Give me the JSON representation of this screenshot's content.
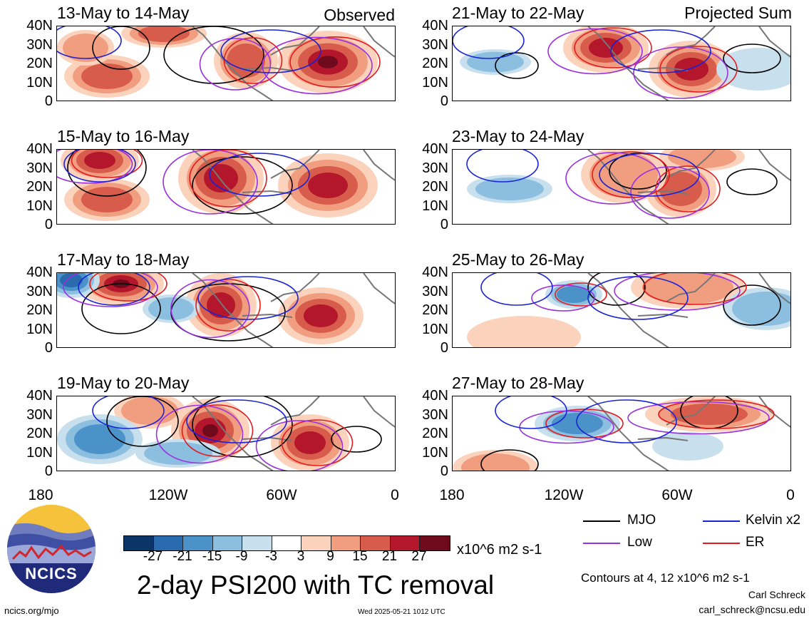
{
  "panels": [
    {
      "title": "13-May to 14-May",
      "label": "Observed"
    },
    {
      "title": "21-May to 22-May",
      "label": "Projected Sum"
    },
    {
      "title": "15-May to 16-May",
      "label": ""
    },
    {
      "title": "23-May to 24-May",
      "label": ""
    },
    {
      "title": "17-May to 18-May",
      "label": ""
    },
    {
      "title": "25-May to 26-May",
      "label": ""
    },
    {
      "title": "19-May to 20-May",
      "label": ""
    },
    {
      "title": "27-May to 28-May",
      "label": ""
    }
  ],
  "lat_ticks": [
    "40N",
    "30N",
    "20N",
    "10N",
    "0"
  ],
  "lon_ticks": [
    "180",
    "120W",
    "60W",
    "0"
  ],
  "colorbar": {
    "labels": [
      "-27",
      "-21",
      "-15",
      "-9",
      "-3",
      "3",
      "9",
      "15",
      "21",
      "27"
    ],
    "colors": [
      "#0b3566",
      "#2a6aae",
      "#4b92c9",
      "#8cbfdf",
      "#c8e0ee",
      "#ffffff",
      "#fbd3bd",
      "#f19d80",
      "#d85c4b",
      "#b4162c",
      "#6e0a1c"
    ],
    "units": "x10^6 m2 s-1"
  },
  "legend": [
    {
      "name": "MJO",
      "color": "#000000"
    },
    {
      "name": "Kelvin x2",
      "color": "#1a22d6"
    },
    {
      "name": "Low",
      "color": "#9a30e0"
    },
    {
      "name": "ER",
      "color": "#e31a1c"
    }
  ],
  "main_title": "2-day PSI200 with TC removal",
  "contour_note": "Contours at 4, 12 x10^6 m2 s-1",
  "author": "Carl Schreck",
  "email": "carl_schreck@ncsu.edu",
  "url": "ncics.org/mjo",
  "timestamp": "Wed 2025-05-21 1012 UTC",
  "logo_text": "NCICS"
}
